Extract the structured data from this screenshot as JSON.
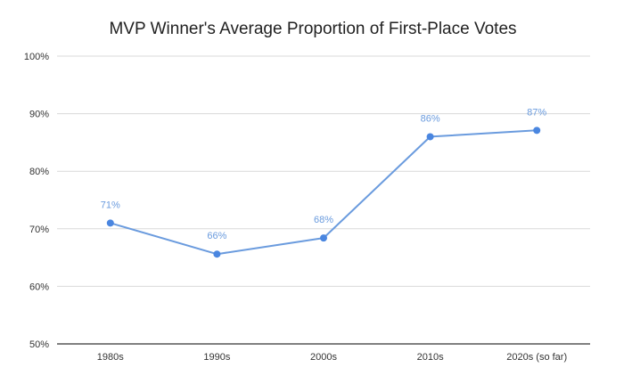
{
  "chart_data": {
    "type": "line",
    "title": "MVP Winner's Average Proportion of First-Place Votes",
    "xlabel": "",
    "ylabel": "",
    "categories": [
      "1980s",
      "1990s",
      "2000s",
      "2010s",
      "2020s (so far)"
    ],
    "series": [
      {
        "name": "Average Proportion of First-Place Votes",
        "values": [
          71,
          65.6,
          68.4,
          86,
          87.1
        ],
        "labels": [
          "71%",
          "66%",
          "68%",
          "86%",
          "87%"
        ]
      }
    ],
    "ylim": [
      50,
      100
    ],
    "yticks": [
      50,
      60,
      70,
      80,
      90,
      100
    ],
    "ytick_labels": [
      "50%",
      "60%",
      "70%",
      "80%",
      "90%",
      "100%"
    ],
    "grid": true,
    "line_color": "#6a9bde",
    "marker_color": "#4a86e0",
    "label_color": "#6a9bde",
    "grid_color": "#d9d9d9",
    "axis_color": "#333333"
  }
}
